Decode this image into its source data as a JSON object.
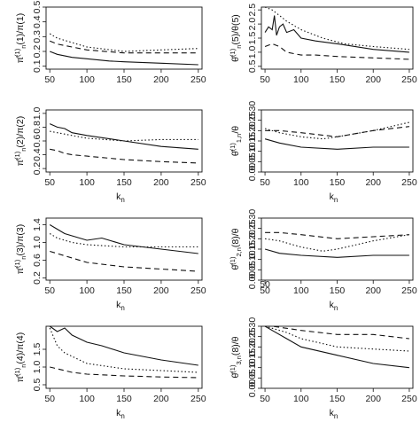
{
  "figure": {
    "background": "#ffffff",
    "line_color": "#111111"
  },
  "chart_data": [
    {
      "type": "line",
      "xlabel": "",
      "ylabel_base": "π̂",
      "ylabel_sup": "(1)",
      "ylabel_sub": "n",
      "ylabel_tail": "(1)/π(1)",
      "xlim": [
        45,
        255
      ],
      "ylim": [
        0.08,
        0.5
      ],
      "xticks": [
        "50",
        "100",
        "150",
        "200",
        "250"
      ],
      "yticks": [
        0.1,
        0.2,
        0.3,
        0.4,
        0.5
      ],
      "ytick_labels": [
        "0.1",
        "0.2",
        "0.3",
        "0.4",
        "0.5"
      ],
      "series": [
        {
          "style": "solid",
          "x": [
            50,
            60,
            80,
            100,
            130,
            150,
            200,
            250
          ],
          "y": [
            0.2,
            0.18,
            0.16,
            0.15,
            0.135,
            0.13,
            0.12,
            0.11
          ]
        },
        {
          "style": "dotted",
          "x": [
            50,
            60,
            80,
            100,
            150,
            200,
            250
          ],
          "y": [
            0.32,
            0.29,
            0.26,
            0.23,
            0.2,
            0.21,
            0.22
          ]
        },
        {
          "style": "dashed",
          "x": [
            50,
            60,
            80,
            100,
            150,
            200,
            250
          ],
          "y": [
            0.27,
            0.25,
            0.23,
            0.21,
            0.19,
            0.19,
            0.19
          ]
        }
      ]
    },
    {
      "type": "line",
      "xlabel": "",
      "ylabel_base": "θ̂",
      "ylabel_sup": "(1)",
      "ylabel_sub": "n",
      "ylabel_tail": "(5)/θ(5)",
      "xlim": [
        45,
        255
      ],
      "ylim": [
        0.4,
        2.6
      ],
      "xticks": [
        "50",
        "100",
        "150",
        "200",
        "250"
      ],
      "yticks": [
        0.5,
        1.0,
        1.5,
        2.0,
        2.5
      ],
      "ytick_labels": [
        "0.5",
        "1.0",
        "1.5",
        "2.0",
        "2.5"
      ],
      "series": [
        {
          "style": "solid",
          "x": [
            50,
            55,
            60,
            63,
            66,
            70,
            75,
            80,
            90,
            100,
            120,
            150,
            200,
            250
          ],
          "y": [
            1.7,
            1.9,
            1.8,
            2.3,
            1.6,
            1.9,
            2.0,
            1.7,
            1.8,
            1.5,
            1.4,
            1.3,
            1.1,
            1.0
          ]
        },
        {
          "style": "dotted",
          "x": [
            50,
            60,
            70,
            80,
            100,
            130,
            160,
            200,
            250
          ],
          "y": [
            2.6,
            2.5,
            2.3,
            2.1,
            1.8,
            1.5,
            1.3,
            1.2,
            1.1
          ]
        },
        {
          "style": "dashed",
          "x": [
            50,
            60,
            70,
            80,
            100,
            120,
            150,
            200,
            250
          ],
          "y": [
            1.2,
            1.3,
            1.2,
            1.0,
            0.9,
            0.9,
            0.85,
            0.8,
            0.75
          ]
        }
      ]
    },
    {
      "type": "line",
      "xlabel": "kn",
      "ylabel_base": "π̂",
      "ylabel_sup": "(1)",
      "ylabel_sub": "n",
      "ylabel_tail": "(2)/π(2)",
      "xlim": [
        45,
        255
      ],
      "ylim": [
        0.15,
        1.05
      ],
      "xticks": [
        "50",
        "100",
        "150",
        "200",
        "250"
      ],
      "yticks": [
        0.2,
        0.4,
        0.6,
        0.8,
        1.0
      ],
      "ytick_labels": [
        "0.2",
        "0.4",
        "0.6",
        "0.8",
        "1.0"
      ],
      "series": [
        {
          "style": "solid",
          "x": [
            50,
            60,
            70,
            80,
            100,
            150,
            200,
            250
          ],
          "y": [
            0.85,
            0.8,
            0.78,
            0.72,
            0.68,
            0.6,
            0.52,
            0.48
          ]
        },
        {
          "style": "dotted",
          "x": [
            50,
            60,
            80,
            100,
            150,
            200,
            250
          ],
          "y": [
            0.74,
            0.72,
            0.68,
            0.64,
            0.6,
            0.62,
            0.62
          ]
        },
        {
          "style": "dashed",
          "x": [
            50,
            60,
            70,
            80,
            100,
            150,
            200,
            250
          ],
          "y": [
            0.48,
            0.46,
            0.42,
            0.4,
            0.38,
            0.33,
            0.3,
            0.28
          ]
        }
      ]
    },
    {
      "type": "line",
      "xlabel": "kn",
      "ylabel_base": "θ̂",
      "ylabel_sup": "(1)",
      "ylabel_sub": "1,n",
      "ylabel_tail": "/θ",
      "xlim": [
        45,
        255
      ],
      "ylim": [
        0.0,
        0.3
      ],
      "xticks": [
        "50",
        "100",
        "150",
        "200",
        "250"
      ],
      "yticks": [
        0.0,
        0.05,
        0.1,
        0.15,
        0.2,
        0.25,
        0.3
      ],
      "ytick_labels": [
        "0.00",
        "0.05",
        "0.10",
        "0.15",
        "0.20",
        "0.25",
        "0.30"
      ],
      "series": [
        {
          "style": "solid",
          "x": [
            50,
            70,
            100,
            150,
            200,
            250
          ],
          "y": [
            0.16,
            0.14,
            0.12,
            0.11,
            0.12,
            0.12
          ]
        },
        {
          "style": "dotted",
          "x": [
            50,
            70,
            100,
            130,
            150,
            200,
            250
          ],
          "y": [
            0.21,
            0.19,
            0.17,
            0.16,
            0.17,
            0.2,
            0.24
          ]
        },
        {
          "style": "dashed",
          "x": [
            50,
            70,
            100,
            150,
            200,
            250
          ],
          "y": [
            0.2,
            0.2,
            0.19,
            0.17,
            0.2,
            0.22
          ]
        }
      ]
    },
    {
      "type": "line",
      "xlabel": "kn",
      "ylabel_base": "π̂",
      "ylabel_sup": "(1)",
      "ylabel_sub": "n",
      "ylabel_tail": "(3)/π(3)",
      "xlim": [
        45,
        255
      ],
      "ylim": [
        0.15,
        1.55
      ],
      "xticks": [
        "50",
        "100",
        "150",
        "200",
        "250"
      ],
      "yticks": [
        0.2,
        0.6,
        1.0,
        1.4
      ],
      "ytick_labels": [
        "0.2",
        "0.6",
        "1.0",
        "1.4"
      ],
      "series": [
        {
          "style": "solid",
          "x": [
            50,
            60,
            70,
            80,
            100,
            120,
            150,
            200,
            250
          ],
          "y": [
            1.4,
            1.3,
            1.2,
            1.15,
            1.05,
            1.1,
            0.95,
            0.85,
            0.75
          ]
        },
        {
          "style": "dotted",
          "x": [
            50,
            60,
            80,
            100,
            150,
            200,
            250
          ],
          "y": [
            1.2,
            1.1,
            1.0,
            0.95,
            0.9,
            0.9,
            0.9
          ]
        },
        {
          "style": "dashed",
          "x": [
            50,
            60,
            80,
            100,
            150,
            200,
            250
          ],
          "y": [
            0.8,
            0.75,
            0.65,
            0.55,
            0.45,
            0.4,
            0.35
          ]
        }
      ]
    },
    {
      "type": "line",
      "xlabel": "kn",
      "ylabel_base": "θ̂",
      "ylabel_sup": "(1)",
      "ylabel_sub": "2,n",
      "ylabel_tail": "(8)/θ",
      "xlim": [
        45,
        255
      ],
      "ylim": [
        0.0,
        0.3
      ],
      "xticks": [
        "50",
        "100",
        "150",
        "200",
        "250"
      ],
      "extra_xtick": "50",
      "yticks": [
        0.0,
        0.05,
        0.1,
        0.15,
        0.2,
        0.25,
        0.3
      ],
      "ytick_labels": [
        "0.00",
        "0.05",
        "0.10",
        "0.15",
        "0.20",
        "0.25",
        "0.30"
      ],
      "series": [
        {
          "style": "solid",
          "x": [
            50,
            70,
            100,
            150,
            200,
            250
          ],
          "y": [
            0.15,
            0.13,
            0.12,
            0.11,
            0.12,
            0.12
          ]
        },
        {
          "style": "dotted",
          "x": [
            50,
            70,
            100,
            130,
            150,
            200,
            250
          ],
          "y": [
            0.2,
            0.19,
            0.16,
            0.14,
            0.15,
            0.19,
            0.22
          ]
        },
        {
          "style": "dashed",
          "x": [
            50,
            70,
            100,
            150,
            200,
            250
          ],
          "y": [
            0.23,
            0.23,
            0.22,
            0.2,
            0.21,
            0.22
          ]
        }
      ]
    },
    {
      "type": "line",
      "xlabel": "kn",
      "ylabel_base": "π̂",
      "ylabel_sup": "(1)",
      "ylabel_sub": "n",
      "ylabel_tail": "(4)/π(4)",
      "xlim": [
        45,
        255
      ],
      "ylim": [
        0.4,
        2.15
      ],
      "xticks": [
        "50",
        "100",
        "150",
        "200",
        "250"
      ],
      "yticks": [
        0.5,
        1.0,
        1.5
      ],
      "ytick_labels": [
        "0.5",
        "1.0",
        "1.5"
      ],
      "series": [
        {
          "style": "solid",
          "x": [
            50,
            60,
            70,
            80,
            90,
            100,
            120,
            150,
            200,
            250
          ],
          "y": [
            2.15,
            2.0,
            2.1,
            1.9,
            1.8,
            1.7,
            1.6,
            1.4,
            1.2,
            1.05
          ]
        },
        {
          "style": "dotted",
          "x": [
            50,
            60,
            70,
            80,
            100,
            150,
            200,
            250
          ],
          "y": [
            2.1,
            1.6,
            1.4,
            1.3,
            1.1,
            0.95,
            0.9,
            0.85
          ]
        },
        {
          "style": "dashed",
          "x": [
            50,
            60,
            80,
            100,
            150,
            200,
            250
          ],
          "y": [
            1.0,
            0.95,
            0.85,
            0.8,
            0.75,
            0.72,
            0.7
          ]
        }
      ]
    },
    {
      "type": "line",
      "xlabel": "kn",
      "ylabel_base": "θ̂",
      "ylabel_sup": "(1)",
      "ylabel_sub": "3,n",
      "ylabel_tail": "(8)/θ",
      "xlim": [
        45,
        255
      ],
      "ylim": [
        0.0,
        0.3
      ],
      "xticks": [
        "50",
        "100",
        "150",
        "200",
        "250"
      ],
      "yticks": [
        0.0,
        0.05,
        0.1,
        0.15,
        0.2,
        0.25,
        0.3
      ],
      "ytick_labels": [
        "0.00",
        "0.05",
        "0.10",
        "0.15",
        "0.20",
        "0.25",
        "0.30"
      ],
      "series": [
        {
          "style": "solid",
          "x": [
            50,
            60,
            80,
            100,
            150,
            200,
            250
          ],
          "y": [
            0.3,
            0.28,
            0.24,
            0.2,
            0.16,
            0.12,
            0.1
          ]
        },
        {
          "style": "dotted",
          "x": [
            50,
            60,
            80,
            100,
            150,
            200,
            250
          ],
          "y": [
            0.3,
            0.29,
            0.27,
            0.24,
            0.2,
            0.19,
            0.18
          ]
        },
        {
          "style": "dashed",
          "x": [
            50,
            60,
            80,
            100,
            150,
            200,
            250
          ],
          "y": [
            0.3,
            0.3,
            0.29,
            0.28,
            0.26,
            0.26,
            0.24
          ]
        }
      ]
    }
  ]
}
